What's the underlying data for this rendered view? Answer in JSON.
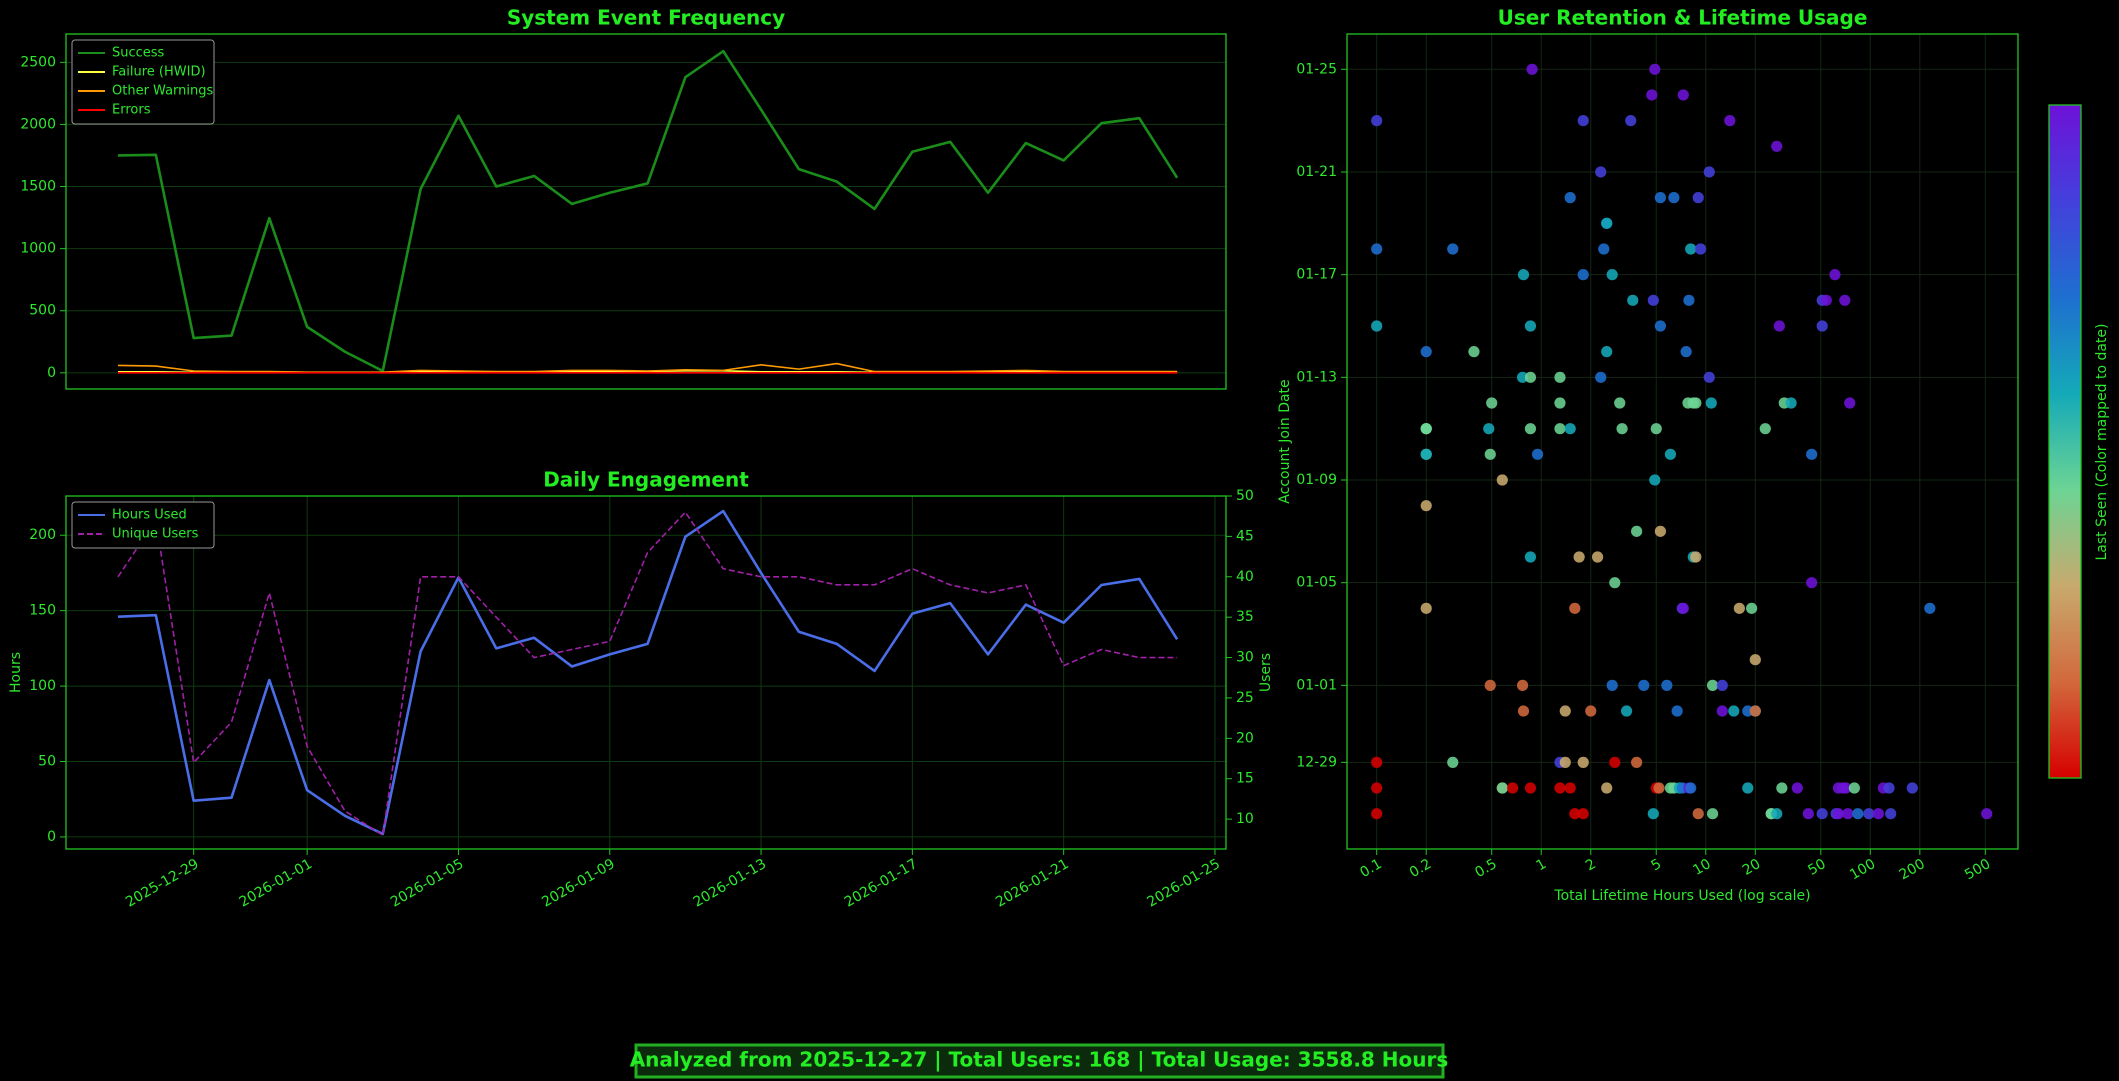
{
  "chart_data": [
    {
      "type": "line",
      "title": "System Event Frequency",
      "x": [
        "2025-12-27",
        "2025-12-28",
        "2025-12-29",
        "2025-12-30",
        "2025-12-31",
        "2026-01-01",
        "2026-01-02",
        "2026-01-03",
        "2026-01-04",
        "2026-01-05",
        "2026-01-06",
        "2026-01-07",
        "2026-01-08",
        "2026-01-09",
        "2026-01-10",
        "2026-01-11",
        "2026-01-12",
        "2026-01-13",
        "2026-01-14",
        "2026-01-15",
        "2026-01-16",
        "2026-01-17",
        "2026-01-18",
        "2026-01-19",
        "2026-01-20",
        "2026-01-21",
        "2026-01-22",
        "2026-01-23",
        "2026-01-24"
      ],
      "xlim": [
        "2025-12-25T15:00",
        "2026-01-25T07:00"
      ],
      "ylim": [
        -130,
        2728
      ],
      "yticks": [
        0,
        500,
        1000,
        1500,
        2000,
        2500
      ],
      "grid": true,
      "legend": "upper left",
      "series": [
        {
          "name": "Success",
          "color": "#1a8c1a",
          "values": [
            1750,
            1755,
            280,
            300,
            1245,
            370,
            170,
            15,
            1480,
            2070,
            1500,
            1585,
            1360,
            1450,
            1525,
            2380,
            2590,
            2120,
            1640,
            1540,
            1320,
            1780,
            1860,
            1450,
            1850,
            1710,
            2010,
            2050,
            1570
          ]
        },
        {
          "name": "Failure (HWID)",
          "color": "#ffff40",
          "values": [
            8,
            8,
            4,
            4,
            6,
            4,
            4,
            2,
            8,
            12,
            4,
            4,
            8,
            8,
            12,
            16,
            16,
            8,
            8,
            8,
            4,
            4,
            4,
            8,
            12,
            4,
            4,
            4,
            4
          ]
        },
        {
          "name": "Other Warnings",
          "color": "#ff9a00",
          "values": [
            60,
            55,
            15,
            10,
            10,
            5,
            5,
            5,
            20,
            15,
            10,
            10,
            20,
            20,
            15,
            25,
            20,
            65,
            30,
            75,
            10,
            10,
            10,
            15,
            20,
            10,
            10,
            10,
            10
          ]
        },
        {
          "name": "Errors",
          "color": "#ff0000",
          "values": [
            0,
            0,
            0,
            0,
            0,
            0,
            0,
            0,
            0,
            0,
            0,
            0,
            0,
            0,
            0,
            0,
            0,
            0,
            0,
            0,
            0,
            0,
            0,
            0,
            0,
            0,
            0,
            0,
            0
          ]
        }
      ]
    },
    {
      "type": "line",
      "title": "Daily Engagement",
      "ylabel": "Hours",
      "y2label": "Users",
      "x": [
        "2025-12-27",
        "2025-12-28",
        "2025-12-29",
        "2025-12-30",
        "2025-12-31",
        "2026-01-01",
        "2026-01-02",
        "2026-01-03",
        "2026-01-04",
        "2026-01-05",
        "2026-01-06",
        "2026-01-07",
        "2026-01-08",
        "2026-01-09",
        "2026-01-10",
        "2026-01-11",
        "2026-01-12",
        "2026-01-13",
        "2026-01-14",
        "2026-01-15",
        "2026-01-16",
        "2026-01-17",
        "2026-01-18",
        "2026-01-19",
        "2026-01-20",
        "2026-01-21",
        "2026-01-22",
        "2026-01-23",
        "2026-01-24"
      ],
      "xlim": [
        "2025-12-25T15:00",
        "2026-01-25T07:00"
      ],
      "xticks": [
        "2025-12-29",
        "2026-01-01",
        "2026-01-05",
        "2026-01-09",
        "2026-01-13",
        "2026-01-17",
        "2026-01-21",
        "2026-01-25"
      ],
      "ylim": [
        -8,
        226
      ],
      "yticks": [
        0,
        50,
        100,
        150,
        200
      ],
      "y2lim": [
        6.3,
        50
      ],
      "y2ticks": [
        10,
        15,
        20,
        25,
        30,
        35,
        40,
        45,
        50
      ],
      "grid": true,
      "legend": "upper left",
      "series": [
        {
          "name": "Hours Used",
          "color": "#4a6ee8",
          "values": [
            146,
            147,
            24,
            26,
            104,
            31,
            14,
            2,
            123,
            172,
            125,
            132,
            113,
            121,
            128,
            199,
            216,
            175,
            136,
            128,
            110,
            148,
            155,
            121,
            154,
            142,
            167,
            171,
            131
          ]
        },
        {
          "name": "Unique Users",
          "color": "#a020a8",
          "dashed": true,
          "axis": "y2",
          "values": [
            40,
            47,
            17,
            22,
            38,
            19,
            11,
            8,
            40,
            40,
            35,
            30,
            31,
            32,
            43,
            48,
            41,
            40,
            40,
            39,
            39,
            41,
            39,
            38,
            39,
            29,
            31,
            30,
            30
          ]
        }
      ]
    },
    {
      "type": "scatter",
      "title": "User Retention & Lifetime Usage",
      "xlabel": "Total Lifetime Hours Used (log scale)",
      "ylabel": "Account Join Date",
      "colorbar_label": "Last Seen (Color mapped to date)",
      "log_x": true,
      "grid": true,
      "xlim": [
        0.066,
        790
      ],
      "xticks": [
        0.1,
        0.2,
        0.5,
        1,
        2,
        5,
        10,
        20,
        50,
        100,
        200,
        500
      ],
      "ylim": [
        "2025-12-25T15:00",
        "2026-01-26T09:00"
      ],
      "yticks": [
        {
          "value": "2025-12-29",
          "label": "12-29"
        },
        {
          "value": "2026-01-01",
          "label": "01-01"
        },
        {
          "value": "2026-01-05",
          "label": "01-05"
        },
        {
          "value": "2026-01-09",
          "label": "01-09"
        },
        {
          "value": "2026-01-13",
          "label": "01-13"
        },
        {
          "value": "2026-01-17",
          "label": "01-17"
        },
        {
          "value": "2026-01-21",
          "label": "01-21"
        },
        {
          "value": "2026-01-25",
          "label": "01-25"
        }
      ],
      "colorbar_colors": [
        "#d60000",
        "#d2693c",
        "#c8aa6e",
        "#6cd494",
        "#14a9b8",
        "#1e6fd0",
        "#4340dc",
        "#6d12d8"
      ],
      "x": [
        0.1,
        0.1,
        0.1,
        0.1,
        0.1,
        0.1,
        0.2,
        0.2,
        0.2,
        0.2,
        0.2,
        0.2,
        0.2,
        0.2,
        0.29,
        0.29,
        0.39,
        0.48,
        0.49,
        0.49,
        0.5,
        0.58,
        0.58,
        0.58,
        0.67,
        0.77,
        0.77,
        0.78,
        0.78,
        0.86,
        0.86,
        0.86,
        0.86,
        0.86,
        0.88,
        0.95,
        1.3,
        1.3,
        1.3,
        1.3,
        1.3,
        1.4,
        1.4,
        1.5,
        1.5,
        1.5,
        1.6,
        1.6,
        1.7,
        1.8,
        1.8,
        1.8,
        1.8,
        2.0,
        2.2,
        2.3,
        2.3,
        2.4,
        2.5,
        2.5,
        2.5,
        2.5,
        2.7,
        2.7,
        2.8,
        2.8,
        3.0,
        3.1,
        3.3,
        3.5,
        3.6,
        3.8,
        3.8,
        4.2,
        4.7,
        4.8,
        4.8,
        4.9,
        4.9,
        5.0,
        5.0,
        5.2,
        5.3,
        5.3,
        5.3,
        5.8,
        6.1,
        6.1,
        6.4,
        6.4,
        6.7,
        6.9,
        7.2,
        7.2,
        7.3,
        7.3,
        7.6,
        7.8,
        7.9,
        7.9,
        8.1,
        8.1,
        8.4,
        8.4,
        8.7,
        8.7,
        9.0,
        9.0,
        9.3,
        10.5,
        10.5,
        10.8,
        11,
        11,
        12.6,
        12.6,
        14,
        14.8,
        16,
        18,
        18,
        19,
        20,
        20,
        20,
        23,
        25,
        25,
        27,
        27,
        28,
        29,
        30,
        33,
        36,
        42,
        44,
        44,
        51,
        51,
        51,
        54,
        61,
        62,
        64,
        64,
        68,
        70,
        71,
        73,
        75,
        80,
        84,
        98,
        112,
        120,
        130,
        133,
        180,
        230,
        510
      ],
      "y": [
        "2026-01-23",
        "2026-01-18",
        "2026-01-15",
        "2025-12-29",
        "2025-12-28",
        "2025-12-27",
        "2026-01-14",
        "2026-01-11",
        "2026-01-11",
        "2026-01-11",
        "2026-01-10",
        "2026-01-10",
        "2026-01-08",
        "2026-01-04",
        "2026-01-18",
        "2025-12-29",
        "2026-01-14",
        "2026-01-11",
        "2026-01-10",
        "2026-01-01",
        "2026-01-12",
        "2026-01-09",
        "2025-12-28",
        "2025-12-28",
        "2025-12-28",
        "2026-01-13",
        "2026-01-01",
        "2026-01-17",
        "2025-12-31",
        "2026-01-15",
        "2026-01-13",
        "2026-01-11",
        "2026-01-06",
        "2025-12-28",
        "2026-01-25",
        "2026-01-10",
        "2026-01-13",
        "2026-01-12",
        "2026-01-11",
        "2025-12-29",
        "2025-12-28",
        "2025-12-31",
        "2025-12-29",
        "2026-01-20",
        "2026-01-11",
        "2025-12-28",
        "2026-01-04",
        "2025-12-27",
        "2026-01-06",
        "2026-01-23",
        "2026-01-17",
        "2025-12-29",
        "2025-12-27",
        "2025-12-31",
        "2026-01-06",
        "2026-01-21",
        "2026-01-13",
        "2026-01-18",
        "2026-01-19",
        "2026-01-19",
        "2026-01-14",
        "2025-12-28",
        "2026-01-17",
        "2026-01-01",
        "2026-01-05",
        "2025-12-29",
        "2026-01-12",
        "2026-01-11",
        "2025-12-31",
        "2026-01-23",
        "2026-01-16",
        "2026-01-07",
        "2025-12-29",
        "2026-01-01",
        "2026-01-24",
        "2026-01-16",
        "2025-12-27",
        "2026-01-25",
        "2026-01-09",
        "2026-01-11",
        "2025-12-28",
        "2025-12-28",
        "2026-01-20",
        "2026-01-15",
        "2026-01-07",
        "2026-01-01",
        "2026-01-10",
        "2025-12-28",
        "2026-01-20",
        "2025-12-28",
        "2025-12-31",
        "2025-12-28",
        "2026-01-04",
        "2025-12-28",
        "2026-01-24",
        "2026-01-04",
        "2026-01-14",
        "2026-01-12",
        "2026-01-16",
        "2025-12-28",
        "2026-01-18",
        "2025-12-28",
        "2026-01-12",
        "2026-01-06",
        "2026-01-12",
        "2026-01-06",
        "2026-01-20",
        "2025-12-27",
        "2026-01-18",
        "2026-01-21",
        "2026-01-13",
        "2026-01-12",
        "2026-01-01",
        "2025-12-27",
        "2026-01-01",
        "2025-12-31",
        "2026-01-23",
        "2025-12-31",
        "2026-01-04",
        "2025-12-31",
        "2025-12-28",
        "2026-01-04",
        "2026-01-02",
        "2025-12-31",
        "2025-12-31",
        "2026-01-11",
        "2025-12-27",
        "2025-12-27",
        "2026-01-22",
        "2025-12-27",
        "2026-01-15",
        "2025-12-28",
        "2026-01-12",
        "2026-01-12",
        "2025-12-28",
        "2025-12-27",
        "2026-01-10",
        "2026-01-05",
        "2026-01-16",
        "2026-01-15",
        "2025-12-27",
        "2026-01-16",
        "2026-01-17",
        "2025-12-27",
        "2025-12-28",
        "2025-12-27",
        "2025-12-28",
        "2026-01-16",
        "2025-12-28",
        "2025-12-27",
        "2026-01-12",
        "2025-12-28",
        "2025-12-27",
        "2025-12-27",
        "2025-12-27",
        "2025-12-28",
        "2025-12-28",
        "2025-12-27",
        "2025-12-28",
        "2026-01-04",
        "2025-12-27"
      ],
      "colors": [
        "#4340dc",
        "#1e6fd0",
        "#14a9b8",
        "#d60000",
        "#d60000",
        "#d60000",
        "#1e6fd0",
        "#6cd494",
        "#6cd494",
        "#6cd494",
        "#6cd494",
        "#14a9b8",
        "#c8aa6e",
        "#c8aa6e",
        "#1e6fd0",
        "#6cd494",
        "#6cd494",
        "#14a9b8",
        "#6cd494",
        "#d2693c",
        "#6cd494",
        "#c8aa6e",
        "#d2693c",
        "#6cd494",
        "#d60000",
        "#14a9b8",
        "#d2693c",
        "#14a9b8",
        "#d2693c",
        "#14a9b8",
        "#6cd494",
        "#6cd494",
        "#14a9b8",
        "#d60000",
        "#6d12d8",
        "#1e6fd0",
        "#6cd494",
        "#6cd494",
        "#6cd494",
        "#4340dc",
        "#d60000",
        "#c8aa6e",
        "#c8aa6e",
        "#1e6fd0",
        "#14a9b8",
        "#d60000",
        "#d2693c",
        "#d60000",
        "#c8aa6e",
        "#4340dc",
        "#1e6fd0",
        "#c8aa6e",
        "#d60000",
        "#d2693c",
        "#c8aa6e",
        "#4340dc",
        "#1e6fd0",
        "#1e6fd0",
        "#1e6fd0",
        "#14a9b8",
        "#14a9b8",
        "#c8aa6e",
        "#14a9b8",
        "#1e6fd0",
        "#6cd494",
        "#d60000",
        "#6cd494",
        "#6cd494",
        "#14a9b8",
        "#4340dc",
        "#14a9b8",
        "#6cd494",
        "#d2693c",
        "#1e6fd0",
        "#6d12d8",
        "#4340dc",
        "#14a9b8",
        "#6d12d8",
        "#14a9b8",
        "#6cd494",
        "#d60000",
        "#d2693c",
        "#1e6fd0",
        "#1e6fd0",
        "#c8aa6e",
        "#1e6fd0",
        "#14a9b8",
        "#6cd494",
        "#1e6fd0",
        "#6cd494",
        "#1e6fd0",
        "#14a9b8",
        "#4340dc",
        "#1e6fd0",
        "#6d12d8",
        "#6d12d8",
        "#1e6fd0",
        "#6cd494",
        "#1e6fd0",
        "#6d12d8",
        "#14a9b8",
        "#1e6fd0",
        "#6cd494",
        "#14a9b8",
        "#6cd494",
        "#c8aa6e",
        "#4340dc",
        "#d2693c",
        "#4340dc",
        "#4340dc",
        "#4340dc",
        "#14a9b8",
        "#6cd494",
        "#6cd494",
        "#4340dc",
        "#6d12d8",
        "#6d12d8",
        "#14a9b8",
        "#c8aa6e",
        "#1e6fd0",
        "#14a9b8",
        "#6cd494",
        "#c8aa6e",
        "#14a9b8",
        "#d2693c",
        "#6cd494",
        "#6cd494",
        "#6cd494",
        "#6d12d8",
        "#14a9b8",
        "#6d12d8",
        "#6cd494",
        "#6cd494",
        "#14a9b8",
        "#6d12d8",
        "#6d12d8",
        "#1e6fd0",
        "#6d12d8",
        "#4340dc",
        "#4340dc",
        "#4340dc",
        "#6d12d8",
        "#6d12d8",
        "#4340dc",
        "#6d12d8",
        "#6d12d8",
        "#6d12d8",
        "#6d12d8",
        "#6d12d8",
        "#6d12d8",
        "#6d12d8",
        "#6cd494",
        "#1e6fd0",
        "#4340dc",
        "#6d12d8",
        "#6d12d8",
        "#4340dc",
        "#4340dc",
        "#4340dc",
        "#1e6fd0",
        "#6d12d8"
      ]
    }
  ],
  "footer": "Analyzed from 2025-12-27 | Total Users: 168 | Total Usage: 3558.8 Hours"
}
